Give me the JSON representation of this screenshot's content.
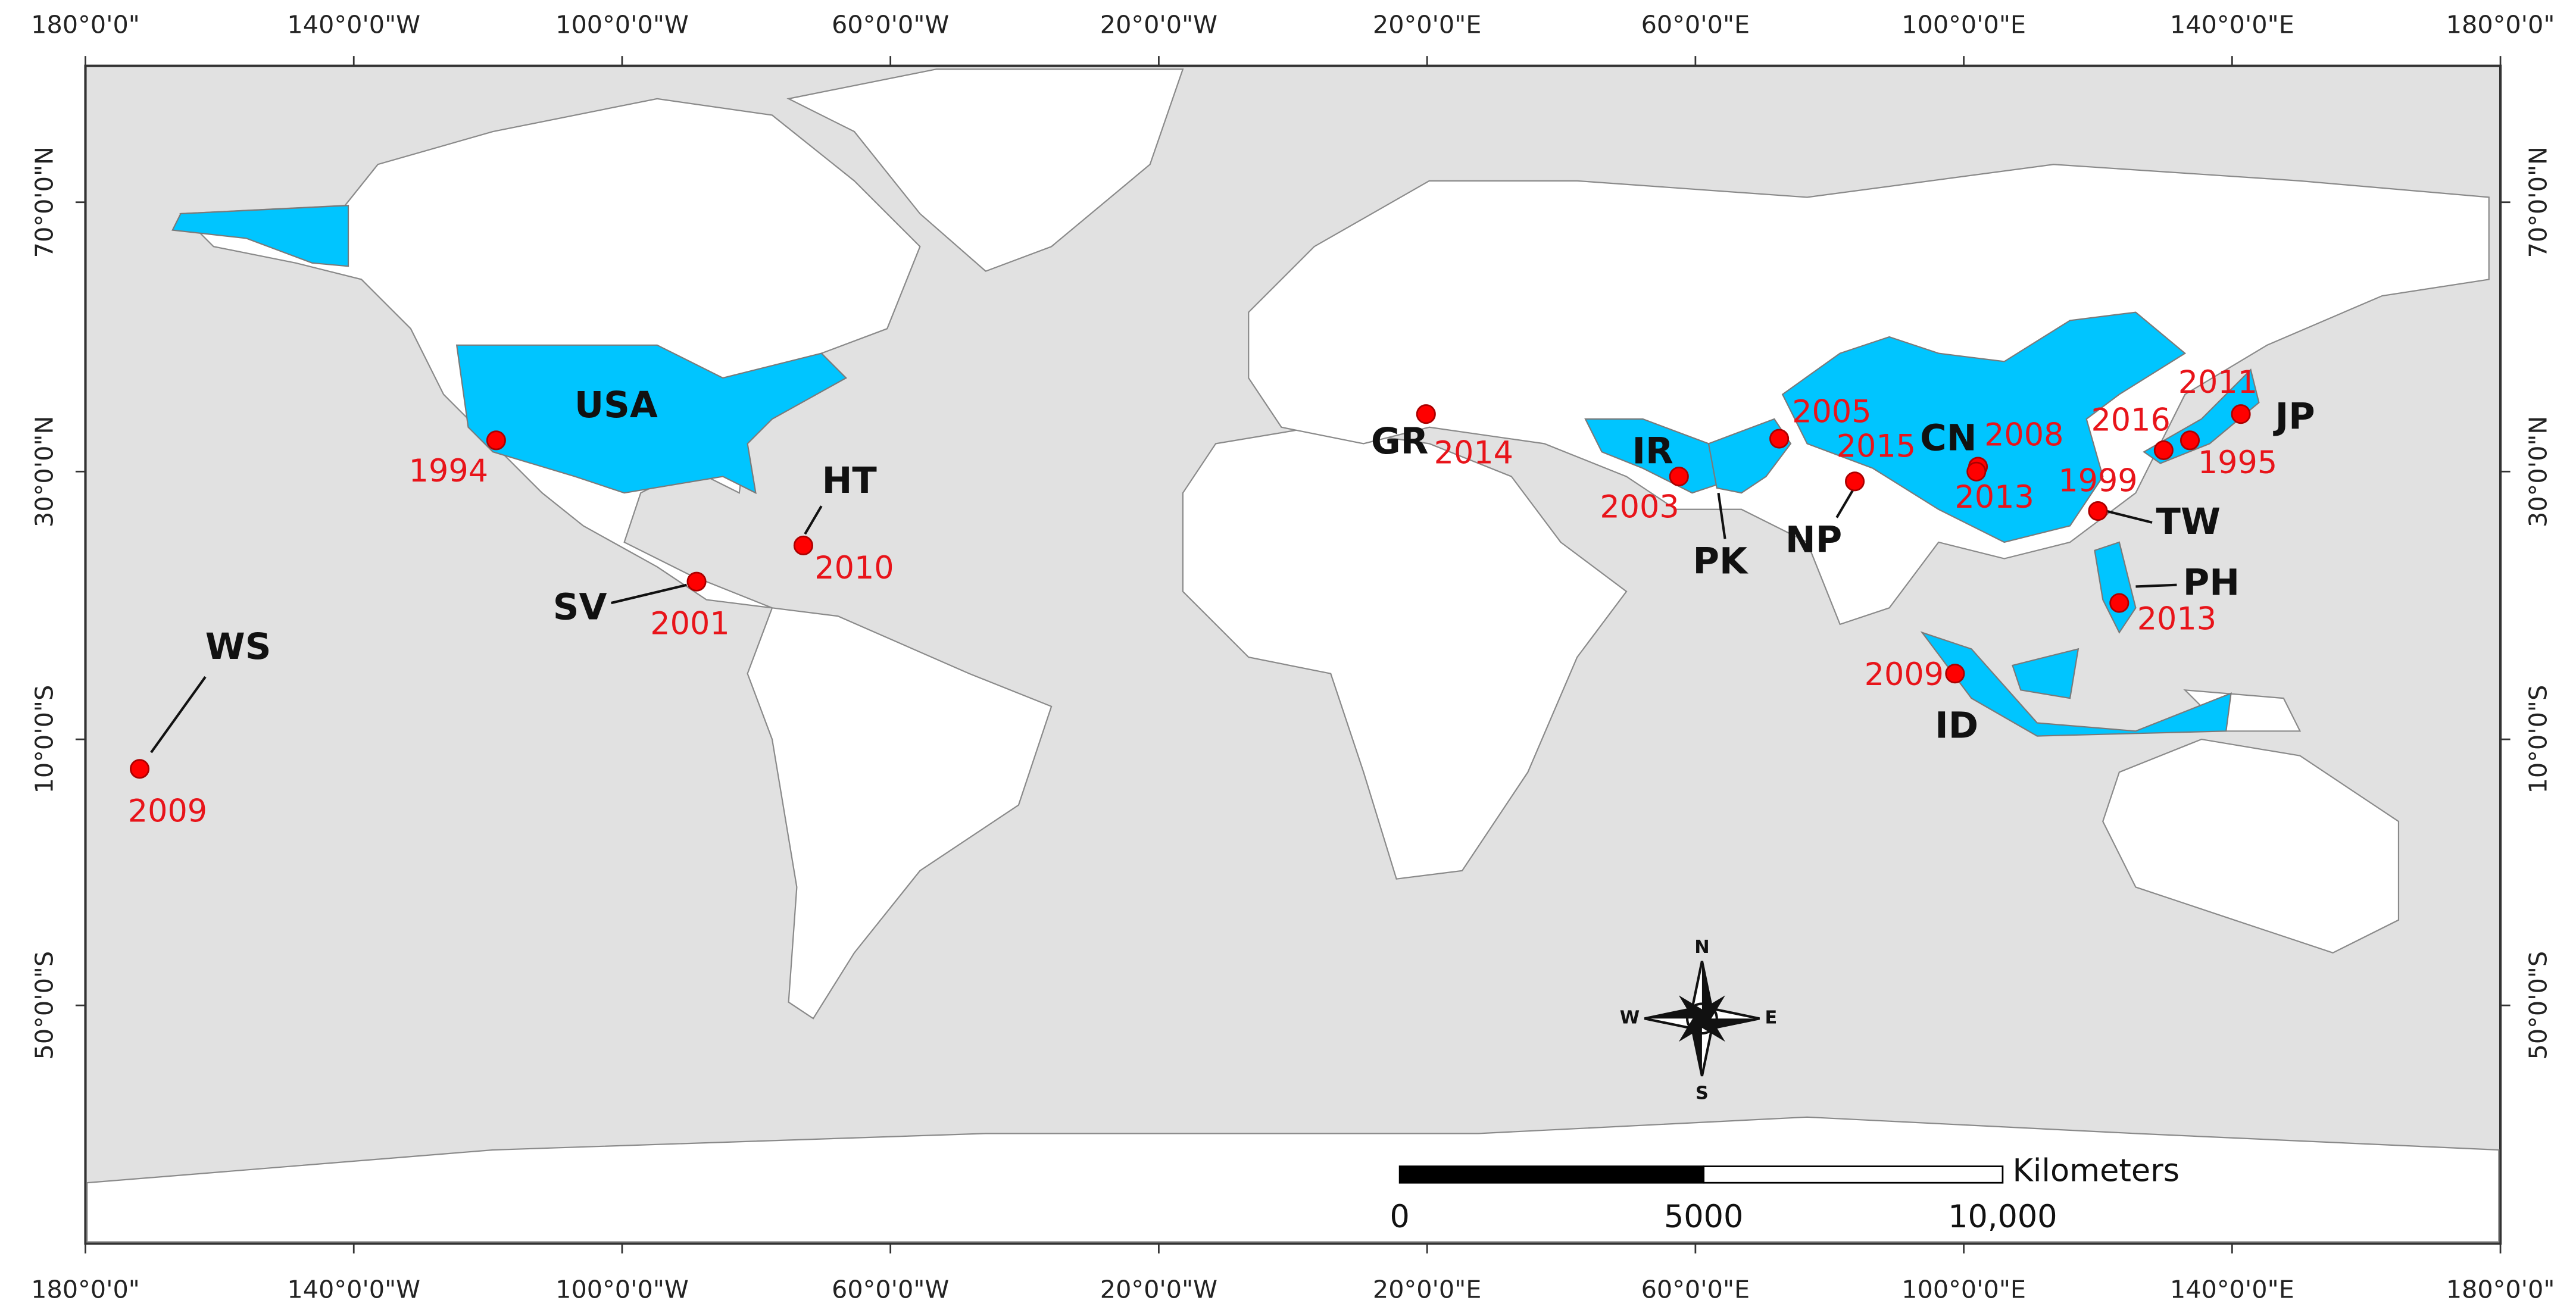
{
  "map": {
    "axes": {
      "top": [
        "180°0'0\"",
        "140°0'0\"W",
        "100°0'0\"W",
        "60°0'0\"W",
        "20°0'0\"W",
        "20°0'0\"E",
        "60°0'0\"E",
        "100°0'0\"E",
        "140°0'0\"E",
        "180°0'0\""
      ],
      "bottom": [
        "180°0'0\"",
        "140°0'0\"W",
        "100°0'0\"W",
        "60°0'0\"W",
        "20°0'0\"W",
        "20°0'0\"E",
        "60°0'0\"E",
        "100°0'0\"E",
        "140°0'0\"E",
        "180°0'0\""
      ],
      "left": [
        "70°0'0\"N",
        "30°0'0\"N",
        "10°0'0\"S",
        "50°0'0\"S"
      ],
      "right": [
        "70°0'0\"N",
        "30°0'0\"N",
        "10°0'0\"S",
        "50°0'0\"S"
      ]
    },
    "countries": [
      {
        "code": "USA",
        "events": [
          "1994"
        ]
      },
      {
        "code": "WS",
        "events": [
          "2009"
        ]
      },
      {
        "code": "SV",
        "events": [
          "2001"
        ]
      },
      {
        "code": "HT",
        "events": [
          "2010"
        ]
      },
      {
        "code": "GR",
        "events": [
          "2014"
        ]
      },
      {
        "code": "IR",
        "events": [
          "2003"
        ]
      },
      {
        "code": "PK",
        "events": [
          "2005"
        ]
      },
      {
        "code": "NP",
        "events": [
          "2015"
        ]
      },
      {
        "code": "CN",
        "events": [
          "2008",
          "2013"
        ]
      },
      {
        "code": "TW",
        "events": [
          "1999"
        ]
      },
      {
        "code": "PH",
        "events": [
          "2013"
        ]
      },
      {
        "code": "ID",
        "events": [
          "2009"
        ]
      },
      {
        "code": "JP",
        "events": [
          "2016",
          "1995",
          "2011"
        ]
      }
    ],
    "scale_bar": {
      "labels": [
        "0",
        "5000",
        "10,000"
      ],
      "unit": "Kilometers"
    },
    "compass": {
      "north": "N",
      "south": "S",
      "east": "E",
      "west": "W"
    }
  }
}
